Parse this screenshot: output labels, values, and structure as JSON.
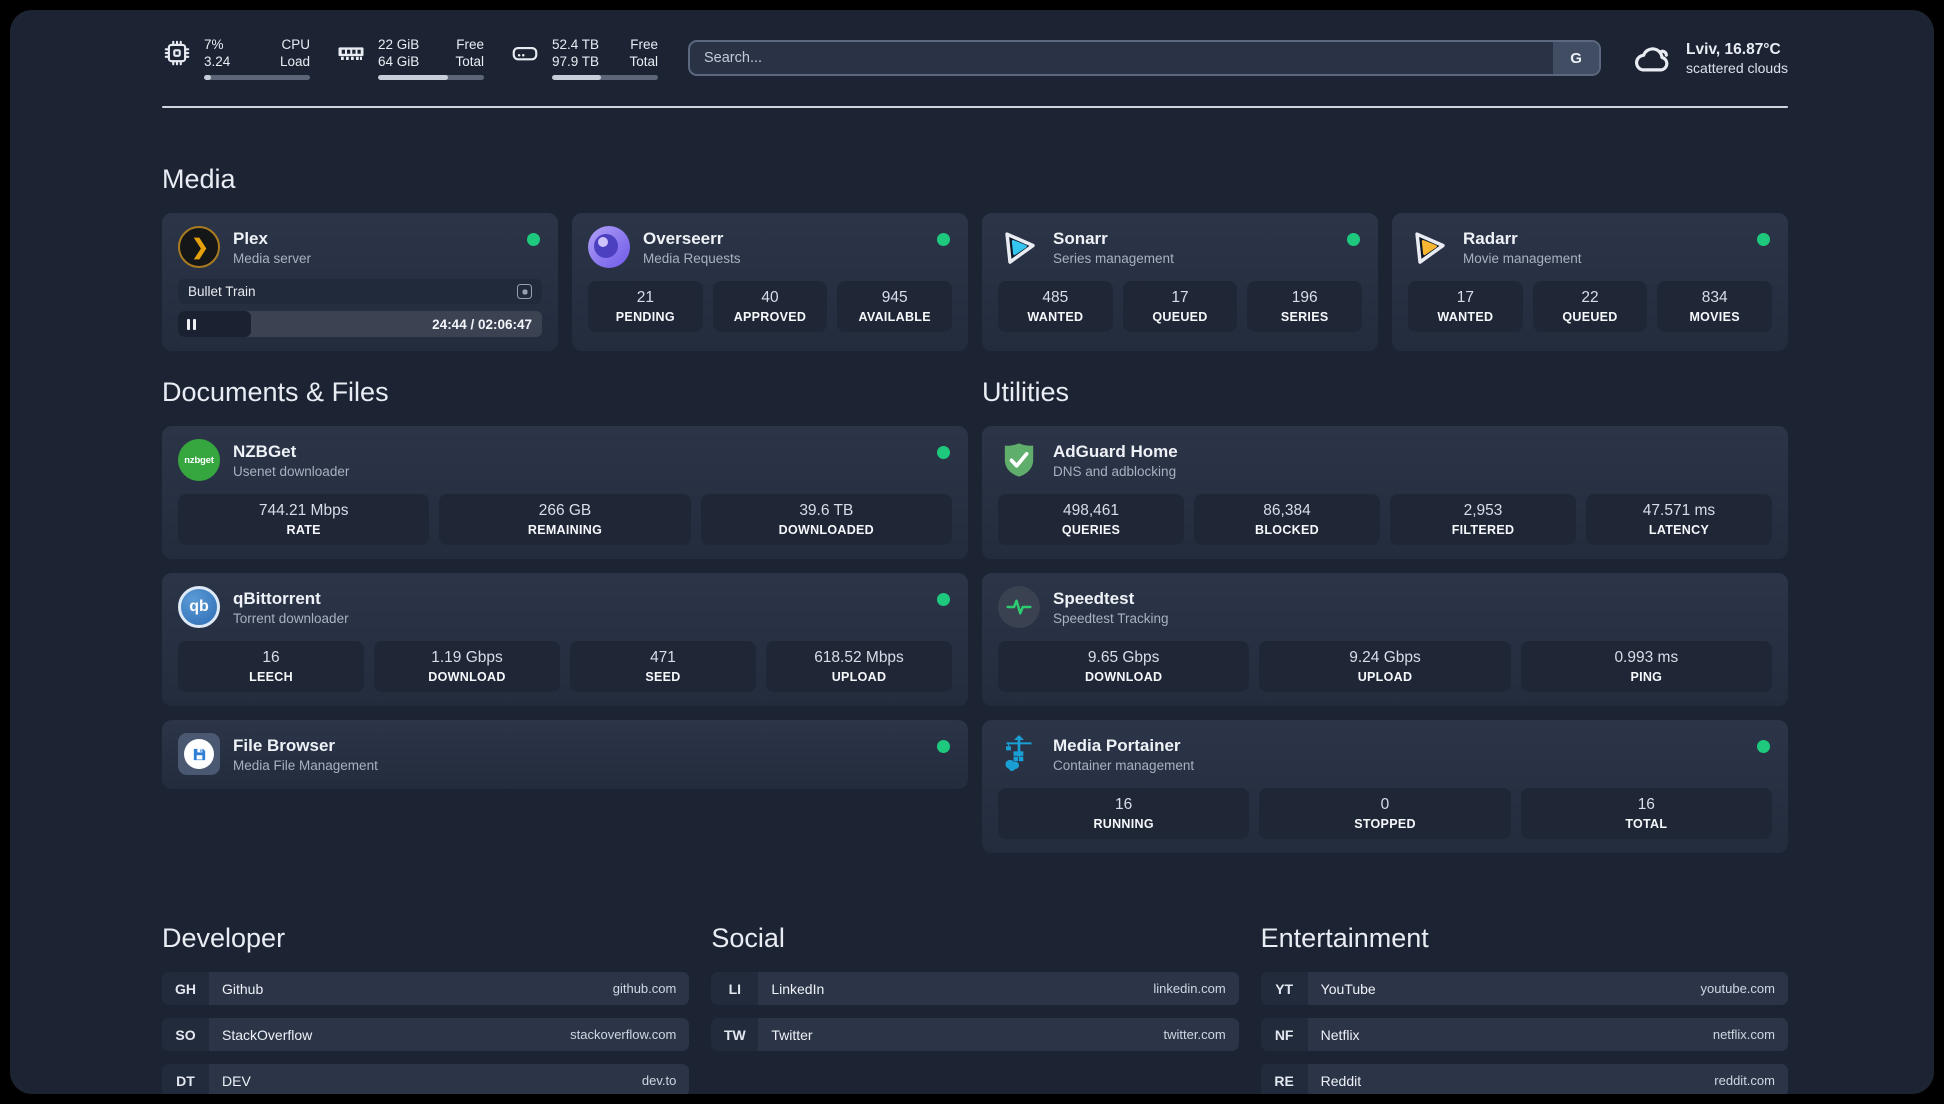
{
  "colors": {
    "status_online": "#1ec97d",
    "plex_amber": "#e5a00d",
    "sonarr_blue": "#35c5f1",
    "radarr_yellow": "#f7b733",
    "nzbget_green": "#36a63f",
    "qbittorrent_blue": "#3c7fd0",
    "adguard_green": "#5fae6b",
    "speedtest_green": "#2ecc71",
    "portainer_blue": "#1a9fd4"
  },
  "header": {
    "system_stats": [
      {
        "id": "cpu",
        "icon": "cpu-icon",
        "rows": [
          {
            "value": "7%",
            "label": "CPU"
          },
          {
            "value": "3.24",
            "label": "Load"
          }
        ],
        "progress_pct": 7
      },
      {
        "id": "memory",
        "icon": "ram-icon",
        "rows": [
          {
            "value": "22 GiB",
            "label": "Free"
          },
          {
            "value": "64 GiB",
            "label": "Total"
          }
        ],
        "progress_pct": 66
      },
      {
        "id": "storage",
        "icon": "disk-icon",
        "rows": [
          {
            "value": "52.4 TB",
            "label": "Free"
          },
          {
            "value": "97.9 TB",
            "label": "Total"
          }
        ],
        "progress_pct": 46
      }
    ],
    "search": {
      "placeholder": "Search...",
      "engine_button": "G"
    },
    "weather": {
      "location": "Lviv, 16.87°C",
      "condition": "scattered clouds"
    }
  },
  "media": {
    "title": "Media",
    "plex": {
      "name": "Plex",
      "subtitle": "Media server",
      "status": "online",
      "now_playing": {
        "title": "Bullet Train",
        "state": "paused",
        "time": "24:44 / 02:06:47",
        "progress_pct": 20
      }
    },
    "overseerr": {
      "name": "Overseerr",
      "subtitle": "Media Requests",
      "status": "online",
      "stats": [
        {
          "value": "21",
          "label": "PENDING"
        },
        {
          "value": "40",
          "label": "APPROVED"
        },
        {
          "value": "945",
          "label": "AVAILABLE"
        }
      ]
    },
    "sonarr": {
      "name": "Sonarr",
      "subtitle": "Series management",
      "status": "online",
      "stats": [
        {
          "value": "485",
          "label": "WANTED"
        },
        {
          "value": "17",
          "label": "QUEUED"
        },
        {
          "value": "196",
          "label": "SERIES"
        }
      ]
    },
    "radarr": {
      "name": "Radarr",
      "subtitle": "Movie management",
      "status": "online",
      "stats": [
        {
          "value": "17",
          "label": "WANTED"
        },
        {
          "value": "22",
          "label": "QUEUED"
        },
        {
          "value": "834",
          "label": "MOVIES"
        }
      ]
    }
  },
  "documents": {
    "title": "Documents & Files",
    "nzbget": {
      "name": "NZBGet",
      "subtitle": "Usenet downloader",
      "status": "online",
      "icon_text": "nzbget",
      "stats": [
        {
          "value": "744.21 Mbps",
          "label": "RATE"
        },
        {
          "value": "266 GB",
          "label": "REMAINING"
        },
        {
          "value": "39.6 TB",
          "label": "DOWNLOADED"
        }
      ]
    },
    "qbittorrent": {
      "name": "qBittorrent",
      "subtitle": "Torrent downloader",
      "status": "online",
      "icon_text": "qb",
      "stats": [
        {
          "value": "16",
          "label": "LEECH"
        },
        {
          "value": "1.19 Gbps",
          "label": "DOWNLOAD"
        },
        {
          "value": "471",
          "label": "SEED"
        },
        {
          "value": "618.52 Mbps",
          "label": "UPLOAD"
        }
      ]
    },
    "filebrowser": {
      "name": "File Browser",
      "subtitle": "Media File Management",
      "status": "online"
    }
  },
  "utilities": {
    "title": "Utilities",
    "adguard": {
      "name": "AdGuard Home",
      "subtitle": "DNS and adblocking",
      "stats": [
        {
          "value": "498,461",
          "label": "QUERIES"
        },
        {
          "value": "86,384",
          "label": "BLOCKED"
        },
        {
          "value": "2,953",
          "label": "FILTERED"
        },
        {
          "value": "47.571 ms",
          "label": "LATENCY"
        }
      ]
    },
    "speedtest": {
      "name": "Speedtest",
      "subtitle": "Speedtest Tracking",
      "stats": [
        {
          "value": "9.65 Gbps",
          "label": "DOWNLOAD"
        },
        {
          "value": "9.24 Gbps",
          "label": "UPLOAD"
        },
        {
          "value": "0.993 ms",
          "label": "PING"
        }
      ]
    },
    "portainer": {
      "name": "Media Portainer",
      "subtitle": "Container management",
      "status": "online",
      "stats": [
        {
          "value": "16",
          "label": "RUNNING"
        },
        {
          "value": "0",
          "label": "STOPPED"
        },
        {
          "value": "16",
          "label": "TOTAL"
        }
      ]
    }
  },
  "links": {
    "developer": {
      "title": "Developer",
      "items": [
        {
          "tag": "GH",
          "name": "Github",
          "url": "github.com"
        },
        {
          "tag": "SO",
          "name": "StackOverflow",
          "url": "stackoverflow.com"
        },
        {
          "tag": "DT",
          "name": "DEV",
          "url": "dev.to"
        }
      ]
    },
    "social": {
      "title": "Social",
      "items": [
        {
          "tag": "LI",
          "name": "LinkedIn",
          "url": "linkedin.com"
        },
        {
          "tag": "TW",
          "name": "Twitter",
          "url": "twitter.com"
        }
      ]
    },
    "entertainment": {
      "title": "Entertainment",
      "items": [
        {
          "tag": "YT",
          "name": "YouTube",
          "url": "youtube.com"
        },
        {
          "tag": "NF",
          "name": "Netflix",
          "url": "netflix.com"
        },
        {
          "tag": "RE",
          "name": "Reddit",
          "url": "reddit.com"
        }
      ]
    }
  }
}
